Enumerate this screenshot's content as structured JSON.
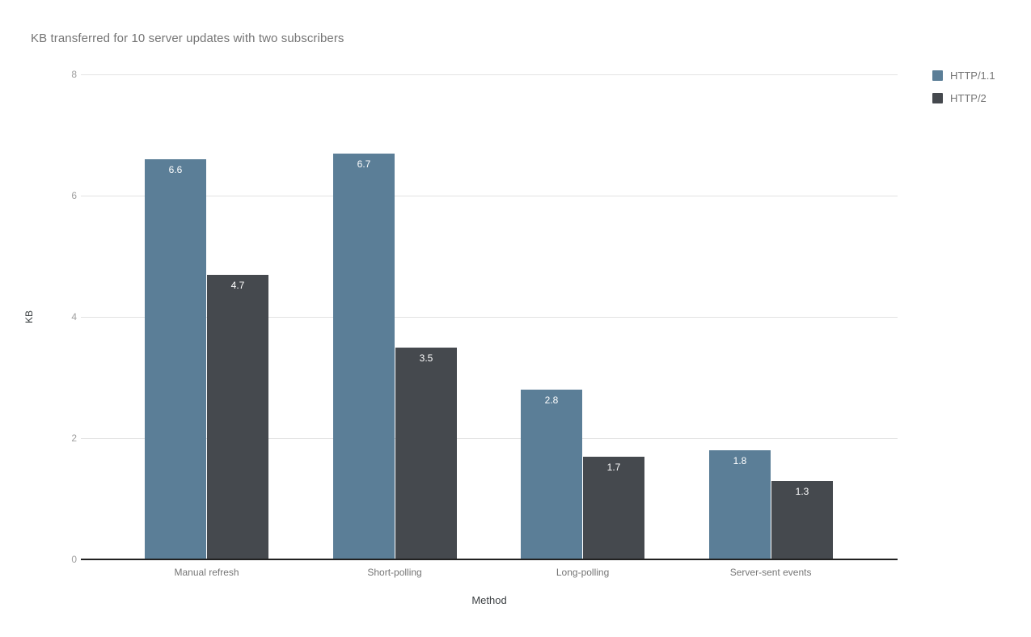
{
  "title": "KB transferred for 10 server updates with two subscribers",
  "chart_data": {
    "type": "bar",
    "title": "KB transferred for 10 server updates with two subscribers",
    "categories": [
      "Manual refresh",
      "Short-polling",
      "Long-polling",
      "Server-sent events"
    ],
    "series": [
      {
        "name": "HTTP/1.1",
        "color": "#5b7e97",
        "values": [
          6.6,
          6.7,
          2.8,
          1.8
        ]
      },
      {
        "name": "HTTP/2",
        "color": "#45494e",
        "values": [
          4.7,
          3.5,
          1.7,
          1.3
        ]
      }
    ],
    "xlabel": "Method",
    "ylabel": "KB",
    "ylim": [
      0,
      8
    ],
    "yticks": [
      0,
      2,
      4,
      6,
      8
    ],
    "grid": true,
    "legend_position": "right",
    "value_labels": true,
    "value_label_color": "#ffffff",
    "gridline_color": "#e3e3e3",
    "axis_line_color": "#212121"
  }
}
